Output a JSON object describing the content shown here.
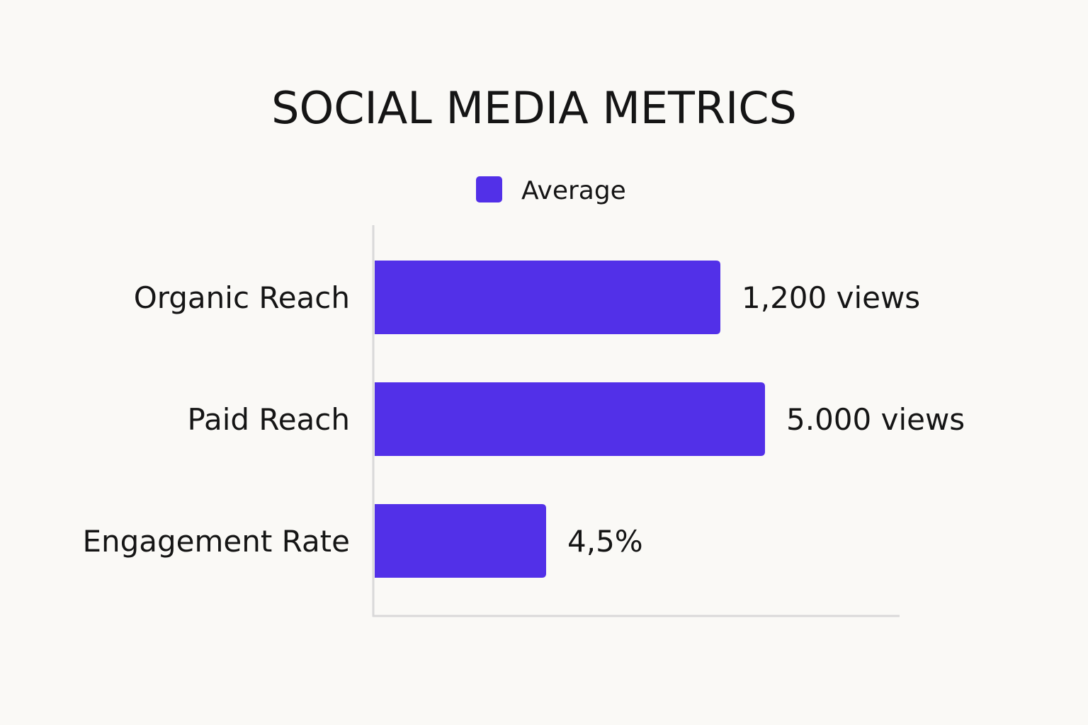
{
  "chart_data": {
    "type": "bar",
    "orientation": "horizontal",
    "title": "SOCIAL MEDIA METRICS",
    "legend": {
      "position": "top-center",
      "entries": [
        {
          "label": "Average",
          "color": "#5230e8"
        }
      ]
    },
    "categories": [
      "Organic Reach",
      "Paid Reach",
      "Engagement Rate"
    ],
    "series": [
      {
        "name": "Average",
        "color": "#5230e8",
        "relative_lengths": [
          0.655,
          0.74,
          0.325
        ],
        "value_labels": [
          "1,200 views",
          "5.000 views",
          "4,5%"
        ]
      }
    ],
    "xlabel": "",
    "ylabel": "",
    "grid": false,
    "axis_color": "#d9d9d9"
  }
}
